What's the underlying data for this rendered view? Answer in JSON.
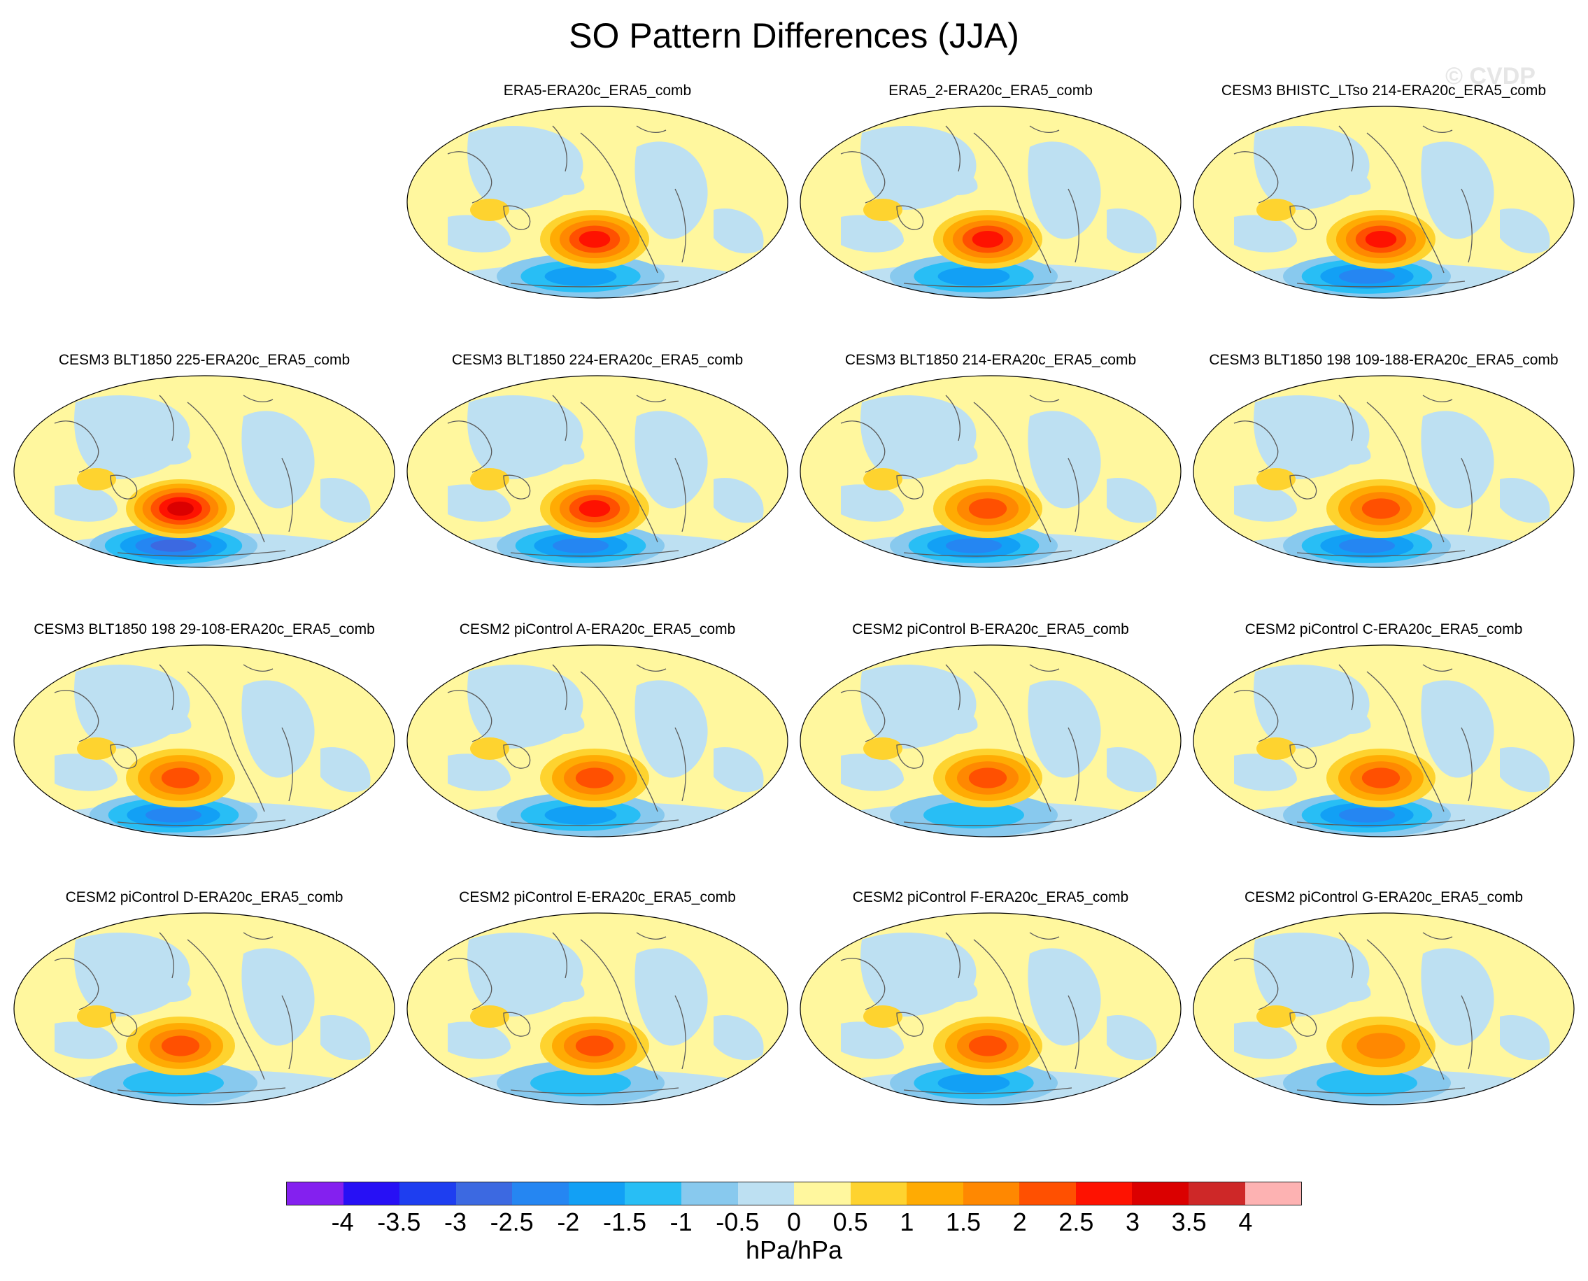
{
  "title": "SO Pattern Differences (JJA)",
  "watermark": "© CVDP",
  "panels": [
    {
      "title": "ERA5-ERA20c_ERA5_comb",
      "high": 2.5,
      "low": -1.5
    },
    {
      "title": "ERA5_2-ERA20c_ERA5_comb",
      "high": 2.5,
      "low": -1.5
    },
    {
      "title": "CESM3 BHISTC_LTso 214-ERA20c_ERA5_comb",
      "high": 2.5,
      "low": -2
    },
    {
      "title": "CESM3 BLT1850 225-ERA20c_ERA5_comb",
      "high": 3,
      "low": -2.5
    },
    {
      "title": "CESM3 BLT1850 224-ERA20c_ERA5_comb",
      "high": 2.5,
      "low": -2
    },
    {
      "title": "CESM3 BLT1850 214-ERA20c_ERA5_comb",
      "high": 2,
      "low": -2
    },
    {
      "title": "CESM3 BLT1850 198 109-188-ERA20c_ERA5_comb",
      "high": 2,
      "low": -2
    },
    {
      "title": "CESM3 BLT1850 198 29-108-ERA20c_ERA5_comb",
      "high": 2,
      "low": -2
    },
    {
      "title": "CESM2 piControl A-ERA20c_ERA5_comb",
      "high": 2,
      "low": -1.5
    },
    {
      "title": "CESM2 piControl B-ERA20c_ERA5_comb",
      "high": 2,
      "low": -1
    },
    {
      "title": "CESM2 piControl C-ERA20c_ERA5_comb",
      "high": 2,
      "low": -2
    },
    {
      "title": "CESM2 piControl D-ERA20c_ERA5_comb",
      "high": 2,
      "low": -1
    },
    {
      "title": "CESM2 piControl E-ERA20c_ERA5_comb",
      "high": 2,
      "low": -1
    },
    {
      "title": "CESM2 piControl F-ERA20c_ERA5_comb",
      "high": 2,
      "low": -1.5
    },
    {
      "title": "CESM2 piControl G-ERA20c_ERA5_comb",
      "high": 1.5,
      "low": -1
    }
  ],
  "colorbar": {
    "colors": [
      "#8420ef",
      "#2710f5",
      "#1e3ef0",
      "#3c69e1",
      "#2586f2",
      "#12a0f5",
      "#28bef5",
      "#88c9ee",
      "#bde0f2",
      "#fff79e",
      "#fed32f",
      "#ffab03",
      "#ff8801",
      "#ff5001",
      "#fe1201",
      "#db0000",
      "#ce2828",
      "#fdb2b2"
    ],
    "labels": [
      "-4",
      "-3.5",
      "-3",
      "-2.5",
      "-2",
      "-1.5",
      "-1",
      "-0.5",
      "0",
      "0.5",
      "1",
      "1.5",
      "2",
      "2.5",
      "3",
      "3.5",
      "4"
    ],
    "units": "hPa/hPa"
  }
}
